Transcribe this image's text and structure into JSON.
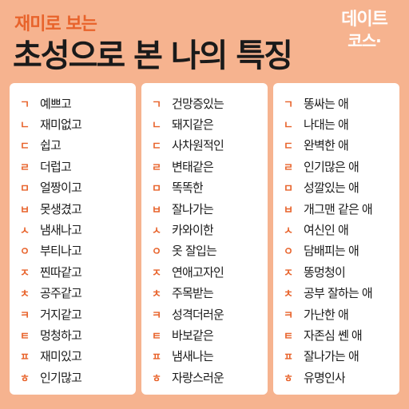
{
  "header": {
    "subtitle": "재미로 보는",
    "title": "초성으로 본 나의 특징",
    "logo_line1": "데이트",
    "logo_line2": "코스·"
  },
  "colors": {
    "background": "#f6b38f",
    "accent": "#e8632b",
    "panel": "#ffffff",
    "text": "#1a1a1a"
  },
  "consonants": [
    "ㄱ",
    "ㄴ",
    "ㄷ",
    "ㄹ",
    "ㅁ",
    "ㅂ",
    "ㅅ",
    "ㅇ",
    "ㅈ",
    "ㅊ",
    "ㅋ",
    "ㅌ",
    "ㅍ",
    "ㅎ"
  ],
  "columns": [
    [
      "예쁘고",
      "재미없고",
      "쉽고",
      "더럽고",
      "얼짱이고",
      "못생겼고",
      "냄새나고",
      "부티나고",
      "찐따같고",
      "공주같고",
      "거지같고",
      "멍청하고",
      "재미있고",
      "인기많고"
    ],
    [
      "건망증있는",
      "돼지같은",
      "사차원적인",
      "변태같은",
      "똑똑한",
      "잘나가는",
      "카와이한",
      "옷 잘입는",
      "연애고자인",
      "주목받는",
      "성격더러운",
      "바보같은",
      "냄새나는",
      "자랑스러운"
    ],
    [
      "똥싸는 애",
      "나대는 애",
      "완벽한 애",
      "인기많은 애",
      "성깔있는 애",
      "개그맨 같은 애",
      "여신인 애",
      "담배피는 애",
      "똥멍청이",
      "공부 잘하는 애",
      "가난한 애",
      "자존심 쎈 애",
      "잘나가는 애",
      "유명인사"
    ]
  ]
}
